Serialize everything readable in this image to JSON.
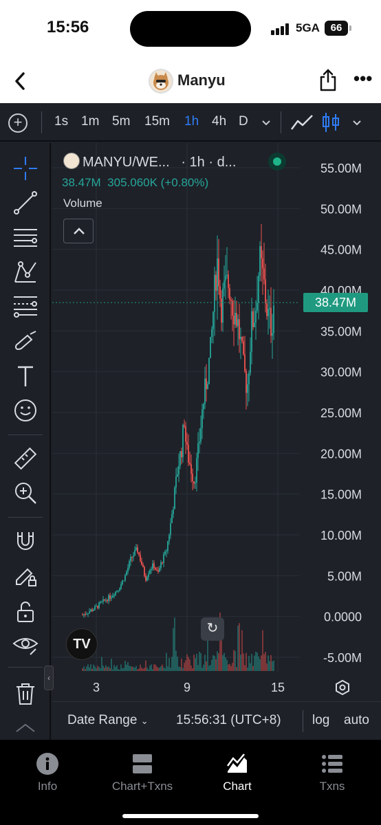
{
  "status_bar": {
    "time": "15:56",
    "network": "5GA",
    "battery": "66"
  },
  "nav": {
    "title": "Manyu"
  },
  "toolbar": {
    "intervals": [
      "1s",
      "1m",
      "5m",
      "15m",
      "1h",
      "4h",
      "D"
    ],
    "active_interval": "1h"
  },
  "legend": {
    "symbol": "MANYU/WE...",
    "interval_source": "· 1h · d...",
    "last_value": "38.47M",
    "change": "305.060K (+0.80%)",
    "indicator": "Volume"
  },
  "price_axis": {
    "ticks": [
      "55.00M",
      "50.00M",
      "45.00M",
      "40.00M",
      "35.00M",
      "30.00M",
      "25.00M",
      "20.00M",
      "15.00M",
      "10.00M",
      "5.00M",
      "0.0000",
      "-5.00M"
    ],
    "current_price_label": "38.47M"
  },
  "time_axis": {
    "ticks": [
      "3",
      "9",
      "15"
    ]
  },
  "bottom_bar": {
    "date_range": "Date Range",
    "clock": "15:56:31 (UTC+8)",
    "log": "log",
    "auto": "auto"
  },
  "tv_logo": "TV",
  "tabs": [
    {
      "label": "Info",
      "icon": "info-icon"
    },
    {
      "label": "Chart+Txns",
      "icon": "split-view-icon"
    },
    {
      "label": "Chart",
      "icon": "chart-icon"
    },
    {
      "label": "Txns",
      "icon": "list-icon"
    }
  ],
  "active_tab": "Chart",
  "colors": {
    "up": "#26a69a",
    "down": "#ef5350",
    "accent": "#2f7cf6",
    "price_label_bg": "#1f9a80",
    "background": "#1d2027"
  },
  "chart_data": {
    "type": "candlestick",
    "symbol": "MANYU/WE...",
    "interval": "1h",
    "y_ticks": [
      55,
      50,
      45,
      40,
      35,
      30,
      25,
      20,
      15,
      10,
      5,
      0,
      -5
    ],
    "y_unit": "M",
    "ylim": [
      -5.5,
      56
    ],
    "x_ticks": [
      "3",
      "9",
      "15"
    ],
    "last_price": 38.47,
    "change_abs": "305.060K",
    "change_pct": 0.8,
    "price_path": [
      [
        0,
        0.2
      ],
      [
        6,
        1.0
      ],
      [
        10,
        1.8
      ],
      [
        14,
        2.5
      ],
      [
        18,
        3.5
      ],
      [
        21,
        5.0
      ],
      [
        24,
        7.2
      ],
      [
        27,
        8.2
      ],
      [
        29,
        6.5
      ],
      [
        31,
        4.6
      ],
      [
        33,
        5.8
      ],
      [
        35,
        6.3
      ],
      [
        37,
        5.2
      ],
      [
        39,
        6.8
      ],
      [
        41,
        7.8
      ],
      [
        43,
        10.8
      ],
      [
        45,
        14.5
      ],
      [
        47,
        18.5
      ],
      [
        49,
        21.0
      ],
      [
        50,
        24.5
      ],
      [
        51,
        20.5
      ],
      [
        53,
        18.5
      ],
      [
        55,
        16.5
      ],
      [
        57,
        20.5
      ],
      [
        59,
        25.5
      ],
      [
        61,
        29.0
      ],
      [
        63,
        32.5
      ],
      [
        64,
        36.5
      ],
      [
        65,
        40.0
      ],
      [
        66,
        44.0
      ],
      [
        67,
        42.0
      ],
      [
        68,
        38.0
      ],
      [
        70,
        40.0
      ],
      [
        72,
        41.0
      ],
      [
        74,
        38.0
      ],
      [
        76,
        36.5
      ],
      [
        78,
        33.0
      ],
      [
        79,
        30.5
      ],
      [
        81,
        28.0
      ],
      [
        83,
        35.5
      ],
      [
        85,
        37.5
      ],
      [
        87,
        43.5
      ],
      [
        89,
        41.0
      ],
      [
        91,
        37.0
      ],
      [
        93,
        35.5
      ],
      [
        94,
        38.47
      ]
    ],
    "volume_scale": "small bars near bottom"
  }
}
